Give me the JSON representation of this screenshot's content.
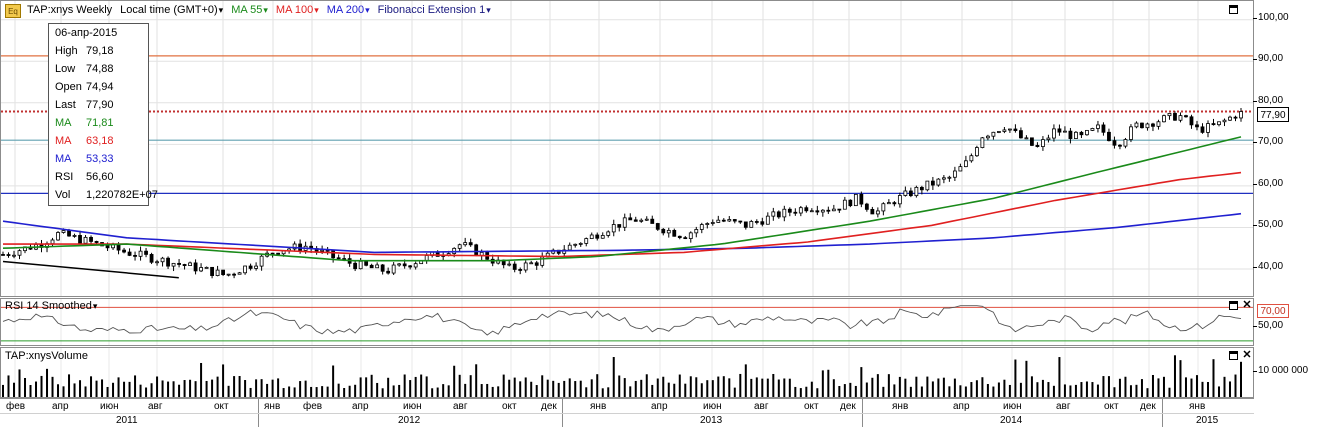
{
  "app": {
    "symbol_label": "TAP:xnys Weekly",
    "timezone_label": "Local time (GMT+0)",
    "eq_icon_text": "Eq"
  },
  "legend": [
    {
      "label": "MA 55",
      "color": "#1a8a1a"
    },
    {
      "label": "MA 100",
      "color": "#e02020"
    },
    {
      "label": "MA 200",
      "color": "#2020d0"
    },
    {
      "label": "Fibonacci Extension 1",
      "color": "#000000"
    }
  ],
  "info": {
    "date": "06-апр-2015",
    "rows": [
      {
        "label": "High",
        "value": "79,18",
        "color": "#000000"
      },
      {
        "label": "Low",
        "value": "74,88",
        "color": "#000000"
      },
      {
        "label": "Open",
        "value": "74,94",
        "color": "#000000"
      },
      {
        "label": "Last",
        "value": "77,90",
        "color": "#000000"
      },
      {
        "label": "MA",
        "value": "71,81",
        "color": "#1a8a1a"
      },
      {
        "label": "MA",
        "value": "63,18",
        "color": "#e02020"
      },
      {
        "label": "MA",
        "value": "53,33",
        "color": "#2020d0"
      },
      {
        "label": "RSI",
        "value": "56,60",
        "color": "#000000"
      },
      {
        "label": "Vol",
        "value": "1,220782E+07",
        "color": "#000000"
      }
    ]
  },
  "price_axis": {
    "ticks": [
      "100,00",
      "90,00",
      "80,00",
      "70,00",
      "60,00",
      "50,00",
      "40,00"
    ],
    "tick_values": [
      100,
      90,
      80,
      70,
      60,
      50,
      40
    ],
    "last_price_tag": "77,90",
    "min": 33.5,
    "max": 104.5
  },
  "rsi": {
    "title": "RSI 14 Smoothed",
    "ticks": [
      "70,00",
      "50,00"
    ],
    "levels": [
      70,
      30
    ]
  },
  "volume": {
    "title": "TAP:xnysVolume",
    "tick": "10 000 000"
  },
  "x_axis": {
    "months": [
      "фев",
      "апр",
      "июн",
      "авг",
      "окт",
      "янв",
      "фев",
      "апр",
      "июн",
      "авг",
      "окт",
      "дек",
      "янв",
      "апр",
      "июн",
      "авг",
      "окт",
      "дек",
      "янв",
      "апр",
      "июн",
      "авг",
      "окт",
      "дек",
      "янв"
    ],
    "years": [
      "2011",
      "2012",
      "2013",
      "2014",
      "2015"
    ]
  },
  "chart_data": {
    "type": "candlestick",
    "frequency": "weekly",
    "x_range": [
      "2011-01",
      "2015-04"
    ],
    "y_range": [
      33.5,
      104.5
    ],
    "horizontal_levels": [
      {
        "value": 91.3,
        "color": "#e07040",
        "style": "solid"
      },
      {
        "value": 77.9,
        "color": "#c03030",
        "style": "dotted"
      },
      {
        "value": 71.0,
        "color": "#60a0b0",
        "style": "solid"
      },
      {
        "value": 58.2,
        "color": "#2030c0",
        "style": "solid"
      }
    ],
    "trendline": {
      "color": "#000000",
      "points": [
        [
          0.0,
          41.8
        ],
        [
          0.142,
          37.9
        ]
      ]
    },
    "price_anchors": [
      [
        0.0,
        43.5
      ],
      [
        0.03,
        46.0
      ],
      [
        0.045,
        48.5
      ],
      [
        0.07,
        46.5
      ],
      [
        0.1,
        44.0
      ],
      [
        0.13,
        42.0
      ],
      [
        0.16,
        40.0
      ],
      [
        0.18,
        38.5
      ],
      [
        0.2,
        41.0
      ],
      [
        0.22,
        44.5
      ],
      [
        0.245,
        45.5
      ],
      [
        0.265,
        43.0
      ],
      [
        0.285,
        41.0
      ],
      [
        0.31,
        39.5
      ],
      [
        0.33,
        41.5
      ],
      [
        0.35,
        43.5
      ],
      [
        0.37,
        46.0
      ],
      [
        0.39,
        43.0
      ],
      [
        0.41,
        40.0
      ],
      [
        0.43,
        41.5
      ],
      [
        0.45,
        44.5
      ],
      [
        0.47,
        47.0
      ],
      [
        0.49,
        50.0
      ],
      [
        0.51,
        52.0
      ],
      [
        0.53,
        50.0
      ],
      [
        0.55,
        48.0
      ],
      [
        0.575,
        52.0
      ],
      [
        0.6,
        50.5
      ],
      [
        0.625,
        53.0
      ],
      [
        0.65,
        55.0
      ],
      [
        0.67,
        54.5
      ],
      [
        0.69,
        57.0
      ],
      [
        0.705,
        53.5
      ],
      [
        0.72,
        56.5
      ],
      [
        0.745,
        60.0
      ],
      [
        0.765,
        62.0
      ],
      [
        0.78,
        66.0
      ],
      [
        0.79,
        72.0
      ],
      [
        0.81,
        74.5
      ],
      [
        0.82,
        72.0
      ],
      [
        0.835,
        69.0
      ],
      [
        0.85,
        73.5
      ],
      [
        0.87,
        71.5
      ],
      [
        0.885,
        74.0
      ],
      [
        0.9,
        70.0
      ],
      [
        0.915,
        74.5
      ],
      [
        0.93,
        75.5
      ],
      [
        0.95,
        77.0
      ],
      [
        0.965,
        73.5
      ],
      [
        0.98,
        74.5
      ],
      [
        1.0,
        77.9
      ]
    ],
    "ma55_anchors": [
      [
        0.0,
        45.0
      ],
      [
        0.1,
        46.0
      ],
      [
        0.28,
        42.0
      ],
      [
        0.4,
        42.0
      ],
      [
        0.48,
        43.0
      ],
      [
        0.58,
        46.0
      ],
      [
        0.7,
        51.5
      ],
      [
        0.8,
        57.0
      ],
      [
        0.88,
        63.0
      ],
      [
        1.0,
        71.8
      ]
    ],
    "ma100_anchors": [
      [
        0.0,
        46.0
      ],
      [
        0.1,
        46.0
      ],
      [
        0.3,
        43.5
      ],
      [
        0.45,
        43.0
      ],
      [
        0.55,
        44.0
      ],
      [
        0.65,
        46.5
      ],
      [
        0.75,
        50.5
      ],
      [
        0.85,
        56.5
      ],
      [
        0.95,
        61.5
      ],
      [
        1.0,
        63.2
      ]
    ],
    "ma200_anchors": [
      [
        0.0,
        51.5
      ],
      [
        0.1,
        47.5
      ],
      [
        0.3,
        44.0
      ],
      [
        0.5,
        44.5
      ],
      [
        0.6,
        45.0
      ],
      [
        0.7,
        46.0
      ],
      [
        0.8,
        47.5
      ],
      [
        0.9,
        50.0
      ],
      [
        1.0,
        53.3
      ]
    ],
    "rsi_last": 56.6,
    "volume_last": 12207820
  }
}
